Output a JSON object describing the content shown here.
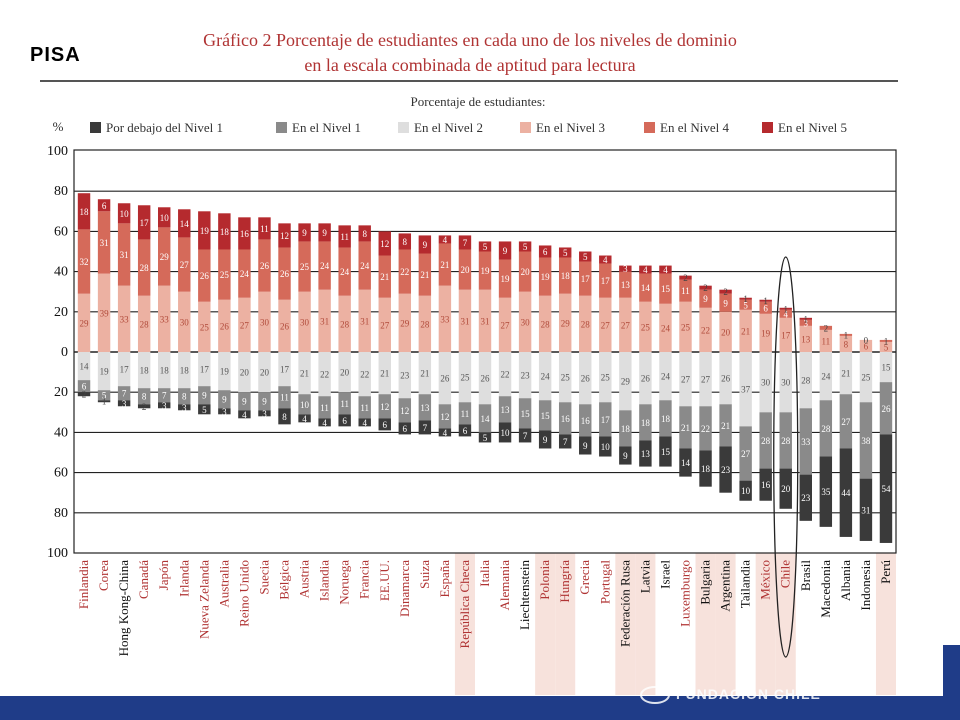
{
  "header": {
    "tag": "PISA",
    "title_line1": "Gráfico 2 Porcentaje de estudiantes en cada uno de los niveles de dominio",
    "title_line2": "en la escala combinada de aptitud para lectura"
  },
  "footer": {
    "logo_text": "FUNDACIÓN CHILE"
  },
  "chart_data": {
    "type": "bar",
    "subtitle": "Porcentaje de estudiantes:",
    "ylabel": "%",
    "yticks": [
      100,
      80,
      60,
      40,
      20,
      0,
      20,
      40,
      60,
      80,
      100
    ],
    "ylim": [
      -100,
      100
    ],
    "grid": true,
    "legend_position": "top",
    "levels": [
      {
        "name": "Por debajo del Nivel 1",
        "color": "#3a3a3a",
        "label_color": "#ffffff"
      },
      {
        "name": "En el Nivel 1",
        "color": "#8a8a8a",
        "label_color": "#ffffff"
      },
      {
        "name": "En el Nivel 2",
        "color": "#dedede",
        "label_color": "#555555"
      },
      {
        "name": "En el Nivel 3",
        "color": "#ecb1a2",
        "label_color": "#b04a3a"
      },
      {
        "name": "En el Nivel 4",
        "color": "#d56a5a",
        "label_color": "#ffffff"
      },
      {
        "name": "En el Nivel 5",
        "color": "#b52a2e",
        "label_color": "#ffffff"
      }
    ],
    "countries": [
      {
        "name": "Finlandia",
        "color": "#b03434",
        "highlight": false,
        "values": [
          2,
          6,
          14,
          29,
          32,
          18
        ]
      },
      {
        "name": "Corea",
        "color": "#b03434",
        "highlight": false,
        "values": [
          1,
          5,
          19,
          39,
          31,
          6
        ]
      },
      {
        "name": "Hong Kong-China",
        "color": "#111111",
        "highlight": false,
        "values": [
          3,
          7,
          17,
          33,
          31,
          10
        ]
      },
      {
        "name": "Canadá",
        "color": "#b03434",
        "highlight": false,
        "values": [
          2,
          8,
          18,
          28,
          28,
          17
        ]
      },
      {
        "name": "Japón",
        "color": "#b03434",
        "highlight": false,
        "values": [
          3,
          7,
          18,
          33,
          29,
          10
        ]
      },
      {
        "name": "Irlanda",
        "color": "#b03434",
        "highlight": false,
        "values": [
          3,
          8,
          18,
          30,
          27,
          14
        ]
      },
      {
        "name": "Nueva Zelanda",
        "color": "#b03434",
        "highlight": false,
        "values": [
          5,
          9,
          17,
          25,
          26,
          19
        ]
      },
      {
        "name": "Australia",
        "color": "#b03434",
        "highlight": false,
        "values": [
          3,
          9,
          19,
          26,
          25,
          18
        ]
      },
      {
        "name": "Reino Unido",
        "color": "#b03434",
        "highlight": false,
        "values": [
          4,
          9,
          20,
          27,
          24,
          16
        ]
      },
      {
        "name": "Suecia",
        "color": "#b03434",
        "highlight": false,
        "values": [
          3,
          9,
          20,
          30,
          26,
          11
        ]
      },
      {
        "name": "Bélgica",
        "color": "#b03434",
        "highlight": false,
        "values": [
          8,
          11,
          17,
          26,
          26,
          12
        ]
      },
      {
        "name": "Austria",
        "color": "#b03434",
        "highlight": false,
        "values": [
          4,
          10,
          21,
          30,
          25,
          9
        ]
      },
      {
        "name": "Islandia",
        "color": "#b03434",
        "highlight": false,
        "values": [
          4,
          11,
          22,
          31,
          24,
          9
        ]
      },
      {
        "name": "Noruega",
        "color": "#b03434",
        "highlight": false,
        "values": [
          6,
          11,
          20,
          28,
          24,
          11
        ]
      },
      {
        "name": "Francia",
        "color": "#b03434",
        "highlight": false,
        "values": [
          4,
          11,
          22,
          31,
          24,
          8
        ]
      },
      {
        "name": "EE.UU.",
        "color": "#b03434",
        "highlight": false,
        "values": [
          6,
          12,
          21,
          27,
          21,
          12
        ]
      },
      {
        "name": "Dinamarca",
        "color": "#b03434",
        "highlight": false,
        "values": [
          6,
          12,
          23,
          29,
          22,
          8
        ]
      },
      {
        "name": "Suiza",
        "color": "#b03434",
        "highlight": false,
        "values": [
          7,
          13,
          21,
          28,
          21,
          9
        ]
      },
      {
        "name": "España",
        "color": "#b03434",
        "highlight": false,
        "values": [
          4,
          12,
          26,
          33,
          21,
          4
        ]
      },
      {
        "name": "República Checa",
        "color": "#b03434",
        "highlight": true,
        "values": [
          6,
          11,
          25,
          31,
          20,
          7
        ]
      },
      {
        "name": "Italia",
        "color": "#b03434",
        "highlight": false,
        "values": [
          5,
          14,
          26,
          31,
          19,
          5
        ]
      },
      {
        "name": "Alemania",
        "color": "#b03434",
        "highlight": false,
        "values": [
          10,
          13,
          22,
          27,
          19,
          9
        ]
      },
      {
        "name": "Liechtenstein",
        "color": "#111111",
        "highlight": false,
        "values": [
          7,
          15,
          23,
          30,
          20,
          5
        ]
      },
      {
        "name": "Polonia",
        "color": "#b03434",
        "highlight": true,
        "values": [
          9,
          15,
          24,
          28,
          19,
          6
        ]
      },
      {
        "name": "Hungría",
        "color": "#b03434",
        "highlight": true,
        "values": [
          7,
          16,
          25,
          29,
          18,
          5
        ]
      },
      {
        "name": "Grecia",
        "color": "#b03434",
        "highlight": false,
        "values": [
          9,
          16,
          26,
          28,
          17,
          5
        ]
      },
      {
        "name": "Portugal",
        "color": "#b03434",
        "highlight": false,
        "values": [
          10,
          17,
          25,
          27,
          17,
          4
        ]
      },
      {
        "name": "Federación Rusa",
        "color": "#111111",
        "highlight": true,
        "values": [
          9,
          18,
          29,
          27,
          13,
          3
        ]
      },
      {
        "name": "Latvia",
        "color": "#111111",
        "highlight": true,
        "values": [
          13,
          18,
          26,
          25,
          14,
          4
        ]
      },
      {
        "name": "Israel",
        "color": "#111111",
        "highlight": false,
        "values": [
          15,
          18,
          24,
          24,
          15,
          4
        ]
      },
      {
        "name": "Luxemburgo",
        "color": "#b03434",
        "highlight": false,
        "values": [
          14,
          21,
          27,
          25,
          11,
          2
        ]
      },
      {
        "name": "Bulgaria",
        "color": "#111111",
        "highlight": true,
        "values": [
          18,
          22,
          27,
          22,
          9,
          2
        ]
      },
      {
        "name": "Argentina",
        "color": "#111111",
        "highlight": true,
        "values": [
          23,
          21,
          26,
          20,
          9,
          2
        ]
      },
      {
        "name": "Tailandia",
        "color": "#111111",
        "highlight": false,
        "values": [
          10,
          27,
          37,
          21,
          5,
          1
        ]
      },
      {
        "name": "México",
        "color": "#b03434",
        "highlight": true,
        "values": [
          16,
          28,
          30,
          19,
          6,
          1
        ]
      },
      {
        "name": "Chile",
        "color": "#b03434",
        "highlight": true,
        "values": [
          20,
          28,
          30,
          17,
          4,
          1
        ]
      },
      {
        "name": "Brasil",
        "color": "#111111",
        "highlight": false,
        "values": [
          23,
          33,
          28,
          13,
          3,
          1
        ]
      },
      {
        "name": "Macedonia",
        "color": "#111111",
        "highlight": false,
        "values": [
          35,
          28,
          24,
          11,
          2,
          0
        ]
      },
      {
        "name": "Albania",
        "color": "#111111",
        "highlight": false,
        "values": [
          44,
          27,
          21,
          8,
          1,
          0
        ]
      },
      {
        "name": "Indonesia",
        "color": "#111111",
        "highlight": false,
        "values": [
          31,
          38,
          25,
          6,
          0,
          0
        ]
      },
      {
        "name": "Perú",
        "color": "#111111",
        "highlight": true,
        "values": [
          54,
          26,
          15,
          5,
          1,
          0
        ]
      }
    ],
    "annotation": {
      "type": "ellipse",
      "around": "Chile"
    }
  }
}
